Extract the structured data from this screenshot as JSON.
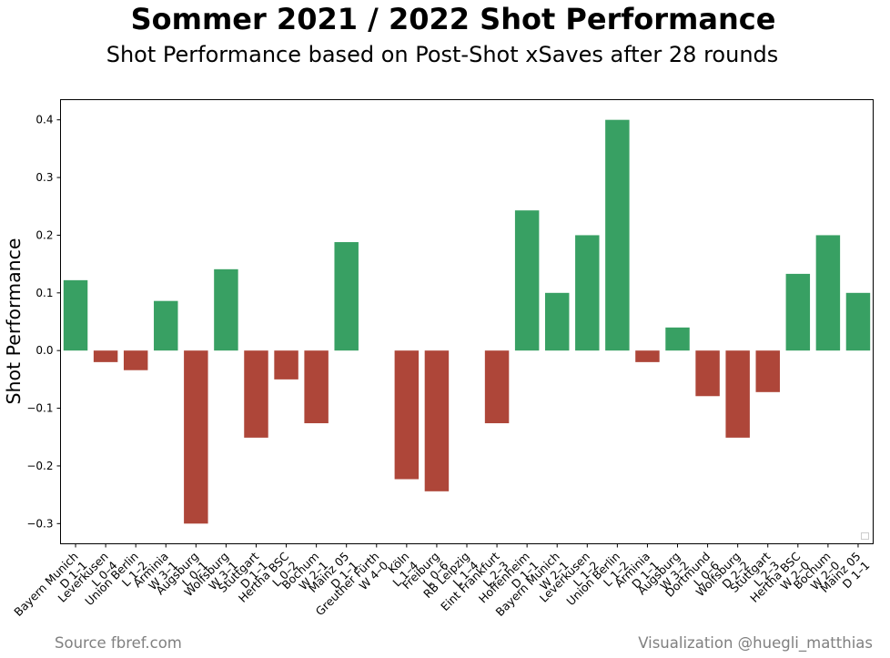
{
  "title": "Sommer 2021 / 2022 Shot Performance",
  "subtitle": "Shot Performance based on Post-Shot xSaves after 28 rounds",
  "footer": {
    "source": "Source fbref.com",
    "credit": "Visualization @huegli_matthias"
  },
  "colors": {
    "positive": "#38a063",
    "negative": "#ae4639"
  },
  "chart_data": {
    "type": "bar",
    "ylabel": "Shot Performance",
    "ylim": [
      -0.335,
      0.435
    ],
    "yticks": [
      -0.3,
      -0.2,
      -0.1,
      0.0,
      0.1,
      0.2,
      0.3,
      0.4
    ],
    "ytick_labels": [
      "−0.3",
      "−0.2",
      "−0.1",
      "0.0",
      "0.1",
      "0.2",
      "0.3",
      "0.4"
    ],
    "grid": false,
    "legend": "lower-right",
    "categories": [
      {
        "team": "Bayern Munich",
        "result": "D 1–1"
      },
      {
        "team": "Leverkusen",
        "result": "L 0–4"
      },
      {
        "team": "Union Berlin",
        "result": "L 1–2"
      },
      {
        "team": "Arminia",
        "result": "W 3–1"
      },
      {
        "team": "Augsburg",
        "result": "L 0–1"
      },
      {
        "team": "Wolfsburg",
        "result": "W 3–1"
      },
      {
        "team": "Stuttgart",
        "result": "D 1–1"
      },
      {
        "team": "Hertha BSC",
        "result": "L 0–2"
      },
      {
        "team": "Bochum",
        "result": "W 2–1"
      },
      {
        "team": "Mainz 05",
        "result": "D 1–1"
      },
      {
        "team": "Greuther Fürth",
        "result": "W 4–0"
      },
      {
        "team": "Köln",
        "result": "L 1–4"
      },
      {
        "team": "Freiburg",
        "result": "L 0–6"
      },
      {
        "team": "RB Leipzig",
        "result": "L 1–4"
      },
      {
        "team": "Eint Frankfurt",
        "result": "L 2–3"
      },
      {
        "team": "Hoffenheim",
        "result": "D 1–1"
      },
      {
        "team": "Bayern Munich",
        "result": "W 2–1"
      },
      {
        "team": "Leverkusen",
        "result": "L 1–2"
      },
      {
        "team": "Union Berlin",
        "result": "L 1–2"
      },
      {
        "team": "Arminia",
        "result": "D 1–1"
      },
      {
        "team": "Augsburg",
        "result": "W 3–2"
      },
      {
        "team": "Dortmund",
        "result": "L 0–6"
      },
      {
        "team": "Wolfsburg",
        "result": "D 2–2"
      },
      {
        "team": "Stuttgart",
        "result": "L 2–3"
      },
      {
        "team": "Hertha BSC",
        "result": "W 2–0"
      },
      {
        "team": "Bochum",
        "result": "W 2–0"
      },
      {
        "team": "Mainz 05",
        "result": "D 1–1"
      }
    ],
    "values": [
      0.122,
      -0.02,
      -0.034,
      0.086,
      -0.3,
      0.141,
      -0.151,
      -0.05,
      -0.126,
      0.188,
      0.0,
      -0.223,
      -0.244,
      0.0,
      -0.126,
      0.243,
      0.1,
      0.2,
      0.4,
      -0.02,
      0.04,
      -0.079,
      -0.151,
      -0.072,
      0.133,
      0.2,
      0.1
    ]
  }
}
